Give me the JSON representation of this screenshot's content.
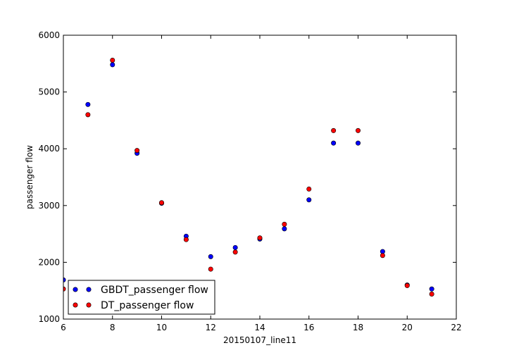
{
  "chart_data": {
    "type": "scatter",
    "title": "",
    "xlabel": "20150107_line11",
    "ylabel": "passenger flow",
    "xlim": [
      6,
      22
    ],
    "ylim": [
      1000,
      6000
    ],
    "xticks": [
      6,
      8,
      10,
      12,
      14,
      16,
      18,
      20,
      22
    ],
    "yticks": [
      1000,
      2000,
      3000,
      4000,
      5000,
      6000
    ],
    "grid": false,
    "legend_position": "bottom-left",
    "series": [
      {
        "name": "GBDT_passenger flow",
        "color": "#0000ff",
        "x": [
          6,
          7,
          8,
          9,
          10,
          11,
          12,
          13,
          14,
          15,
          16,
          17,
          18,
          19,
          20,
          21
        ],
        "y": [
          1690,
          4780,
          5480,
          3920,
          3040,
          2460,
          2100,
          2260,
          2410,
          2590,
          3100,
          4100,
          4100,
          2190,
          1600,
          1530
        ]
      },
      {
        "name": "DT_passenger flow",
        "color": "#ff0000",
        "x": [
          6,
          7,
          8,
          9,
          10,
          11,
          12,
          13,
          14,
          15,
          16,
          17,
          18,
          19,
          20,
          21
        ],
        "y": [
          1530,
          4600,
          5560,
          3970,
          3050,
          2400,
          1880,
          2180,
          2430,
          2670,
          3290,
          4320,
          4320,
          2120,
          1590,
          1440
        ]
      }
    ]
  }
}
